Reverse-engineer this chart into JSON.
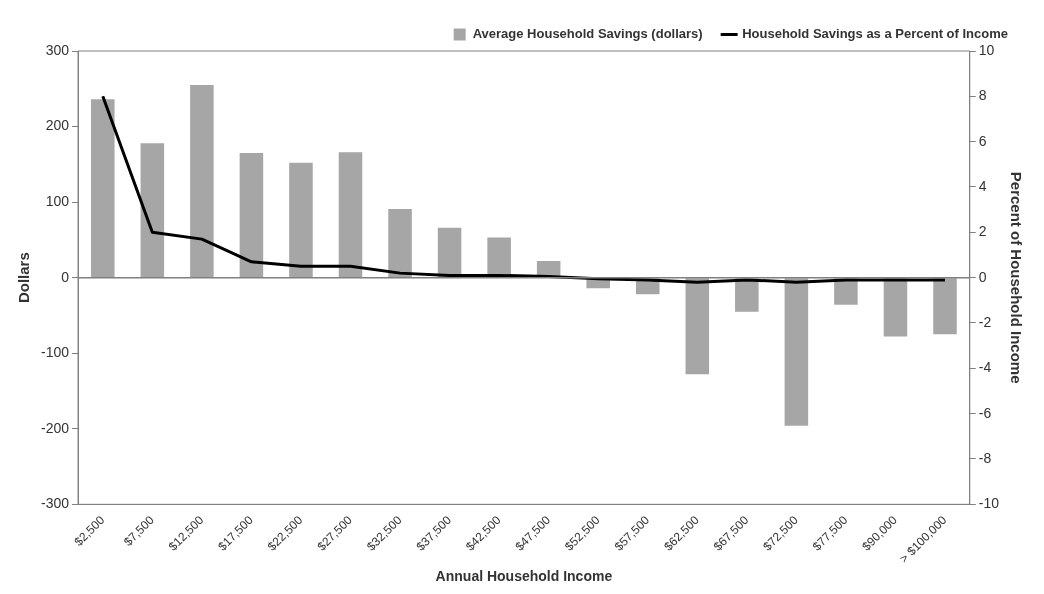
{
  "chart_data": {
    "type": "bar",
    "xlabel": "Annual Household Income",
    "ylabel": "Dollars",
    "y2label": "Percent of Household Income",
    "legend": "top",
    "categories": [
      "$2,500",
      "$7,500",
      "$12,500",
      "$17,500",
      "$22,500",
      "$27,500",
      "$32,500",
      "$37,500",
      "$42,500",
      "$47,500",
      "$52,500",
      "$57,500",
      "$62,500",
      "$67,500",
      "$72,500",
      "$77,500",
      "$90,000",
      "> $100,000"
    ],
    "series": [
      {
        "name": "Average Household Savings (dollars)",
        "color": "#a6a6a6",
        "values": [
          236,
          178,
          255,
          165,
          152,
          166,
          91,
          66,
          53,
          22,
          -14,
          -22,
          -128,
          -45,
          -196,
          -36,
          -78,
          -75
        ]
      },
      {
        "name": "Household Savings as a Percent of Income",
        "type": "line",
        "axis": "y2",
        "color": "#000000",
        "values": [
          8.0,
          2.0,
          1.7,
          0.7,
          0.5,
          0.5,
          0.2,
          0.1,
          0.1,
          0.05,
          -0.05,
          -0.1,
          -0.2,
          -0.1,
          -0.2,
          -0.1,
          -0.1,
          -0.1
        ]
      }
    ],
    "ylim": [
      -300,
      300
    ],
    "yticks": [
      -300,
      -200,
      -100,
      0,
      100,
      200,
      300
    ],
    "y2lim": [
      -10,
      10
    ],
    "y2ticks": [
      -10,
      -8,
      -6,
      -4,
      -2,
      0,
      2,
      4,
      6,
      8,
      10
    ],
    "ref_lines": [
      {
        "axis": "y",
        "value": 0,
        "color": "#808080"
      }
    ]
  }
}
